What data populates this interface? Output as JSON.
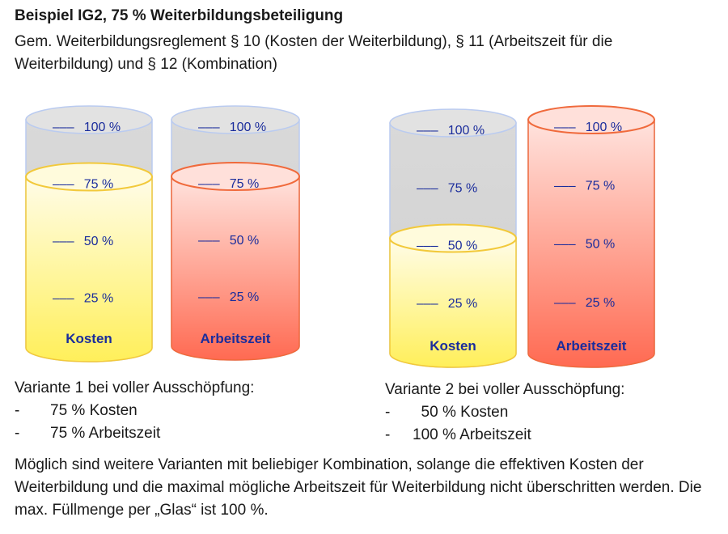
{
  "header": {
    "title": "Beispiel IG2, 75 % Weiterbildungsbeteiligung",
    "subtitle": "Gem. Weiterbildungsreglement § 10 (Kosten der Weiterbildung), § 11 (Arbeitszeit für die Weiterbildung) und § 12 (Kombination)"
  },
  "diagram": {
    "scale_dash": "–––",
    "scale_labels": [
      "100 %",
      "75 %",
      "50 %",
      "25 %"
    ],
    "groups": [
      {
        "glasses": [
          {
            "label": "Kosten",
            "fill": 75,
            "fill_color": "#FFF06A"
          },
          {
            "label": "Arbeitszeit",
            "fill": 75,
            "fill_color": "#FF6F55"
          }
        ]
      },
      {
        "glasses": [
          {
            "label": "Kosten",
            "fill": 50,
            "fill_color": "#FFF06A"
          },
          {
            "label": "Arbeitszeit",
            "fill": 100,
            "fill_color": "#FF6F55"
          }
        ]
      }
    ],
    "colors": {
      "empty_glass": "#D6D6D6",
      "empty_outline": "#BACBF0",
      "kosten_outline": "#F2C93B",
      "arbeitszeit_outline": "#F06A3C",
      "label_text": "#1A2C9C",
      "scale_text": "#1A2C9C"
    }
  },
  "variants": [
    {
      "heading": "Variante 1 bei voller Ausschöpfung:",
      "items": [
        {
          "dash": "-",
          "text": "75 % Kosten"
        },
        {
          "dash": "-",
          "text": "75 % Arbeitszeit"
        }
      ]
    },
    {
      "heading": "Variante 2 bei voller Ausschöpfung:",
      "items": [
        {
          "dash": "-",
          "text": "  50 % Kosten"
        },
        {
          "dash": "-",
          "text": "100 % Arbeitszeit"
        }
      ]
    }
  ],
  "footer": {
    "text": "Möglich sind weitere Varianten mit beliebiger Kombination, solange die effektiven Kosten der Weiterbildung und die maximal mögliche Arbeitszeit für Weiterbildung nicht überschritten werden. Die max. Füllmenge per „Glas“ ist 100 %."
  }
}
